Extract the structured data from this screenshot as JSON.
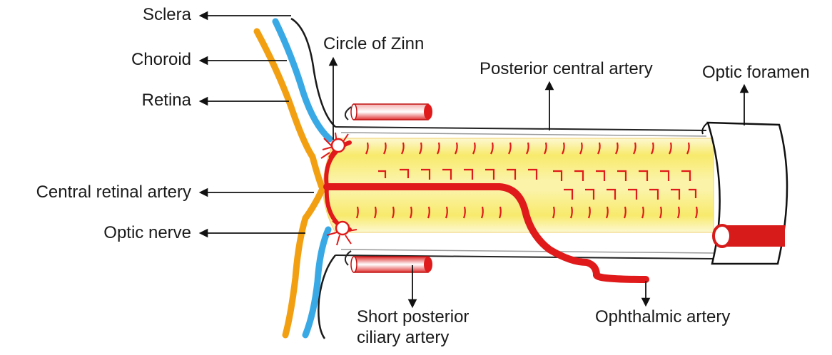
{
  "labels": {
    "sclera": "Sclera",
    "choroid": "Choroid",
    "retina": "Retina",
    "central_retinal_artery": "Central retinal artery",
    "optic_nerve": "Optic nerve",
    "circle_of_zinn": "Circle of Zinn",
    "posterior_central_artery": "Posterior central artery",
    "optic_foramen": "Optic foramen",
    "short_posterior_ciliary_artery_line1": "Short posterior",
    "short_posterior_ciliary_artery_line2": "ciliary artery",
    "ophthalmic_artery": "Ophthalmic artery"
  },
  "colors": {
    "sclera": "#1a1a1a",
    "choroid": "#39a9e6",
    "retina": "#f2a012",
    "artery": "#e01a1a",
    "nerve_fill": "#f8ec7a",
    "nerve_edge": "#fdf7c6",
    "text": "#1a1a1a"
  },
  "icons": [
    "arrow-left-icon",
    "arrow-up-icon",
    "arrow-down-icon"
  ]
}
